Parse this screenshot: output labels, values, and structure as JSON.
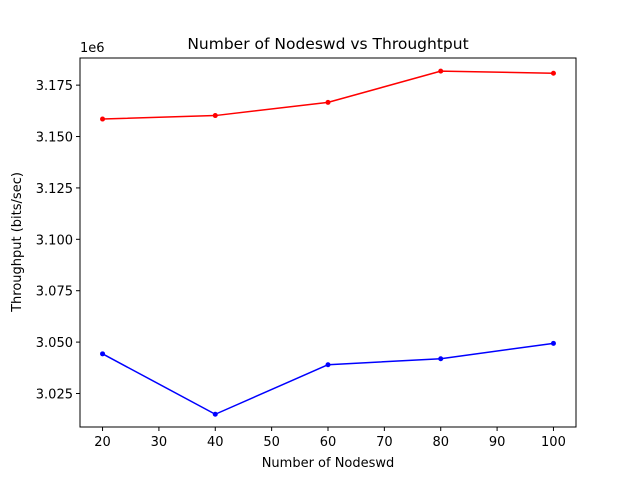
{
  "chart_data": {
    "type": "line",
    "title": "Number of Nodeswd vs Throughtput",
    "xlabel": "Number of Nodeswd",
    "ylabel": "Throughput (bits/sec)",
    "offset_label": "1e6",
    "x": [
      20,
      40,
      60,
      80,
      100
    ],
    "x_ticks": [
      20,
      30,
      40,
      50,
      60,
      70,
      80,
      90,
      100
    ],
    "x_tick_labels": [
      "20",
      "30",
      "40",
      "50",
      "60",
      "70",
      "80",
      "90",
      "100"
    ],
    "y_ticks": [
      3.025,
      3.05,
      3.075,
      3.1,
      3.125,
      3.15,
      3.175
    ],
    "y_tick_labels": [
      "3.025",
      "3.050",
      "3.075",
      "3.100",
      "3.125",
      "3.150",
      "3.175"
    ],
    "xlim": [
      16,
      104
    ],
    "ylim": [
      3.0087,
      3.1882
    ],
    "y_scale": 1000000,
    "grid": false,
    "legend": "none",
    "series": [
      {
        "color": "#ff0000",
        "values": [
          3.1585,
          3.1602,
          3.1666,
          3.1818,
          3.1808
        ]
      },
      {
        "color": "#0000ff",
        "values": [
          3.0443,
          3.0149,
          3.039,
          3.0419,
          3.0494
        ]
      }
    ]
  }
}
